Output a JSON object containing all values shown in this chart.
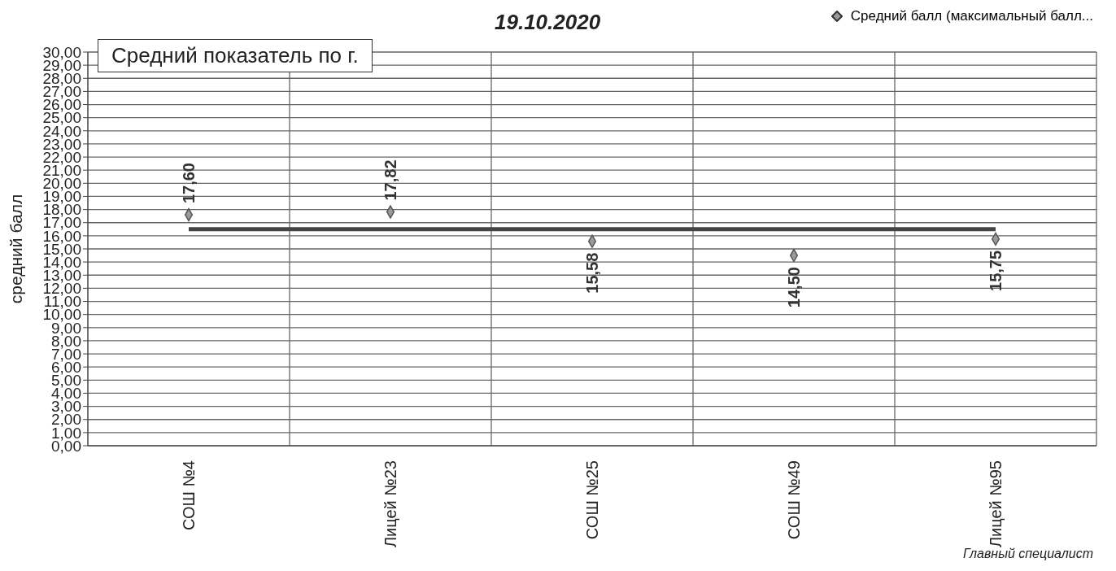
{
  "chart_data": {
    "type": "scatter",
    "title": "19.10.2020",
    "ylabel": "средний балл",
    "categories": [
      "СОШ №4",
      "Лицей №23",
      "СОШ №25",
      "СОШ №49",
      "Лицей №95"
    ],
    "series": [
      {
        "name": "Средний балл (максимальный балл...",
        "color": "#9a9a9a",
        "values": [
          17.6,
          17.82,
          15.58,
          14.5,
          15.75
        ]
      }
    ],
    "value_labels": [
      "17,60",
      "17,82",
      "15,58",
      "14,50",
      "15,75"
    ],
    "marker": "diamond",
    "grid": true,
    "legend": "top right",
    "ref_lines": [
      {
        "axis": "y",
        "value": 16.5,
        "label": "Средний показатель по г.",
        "color": "#444444"
      }
    ],
    "annotations": [
      "Главный специалист"
    ],
    "ylim": [
      0,
      30
    ],
    "yticks": [
      {
        "value": 0,
        "label": "0,00"
      },
      {
        "value": 1,
        "label": "1,00"
      },
      {
        "value": 2,
        "label": "2,00"
      },
      {
        "value": 3,
        "label": "3,00"
      },
      {
        "value": 4,
        "label": "4,00"
      },
      {
        "value": 5,
        "label": "5,00"
      },
      {
        "value": 6,
        "label": "6,00"
      },
      {
        "value": 7,
        "label": "7,00"
      },
      {
        "value": 8,
        "label": "8,00"
      },
      {
        "value": 9,
        "label": "9,00"
      },
      {
        "value": 10,
        "label": "10,00"
      },
      {
        "value": 11,
        "label": "11,00"
      },
      {
        "value": 12,
        "label": "12,00"
      },
      {
        "value": 13,
        "label": "13,00"
      },
      {
        "value": 14,
        "label": "14,00"
      },
      {
        "value": 15,
        "label": "15,00"
      },
      {
        "value": 16,
        "label": "16,00"
      },
      {
        "value": 17,
        "label": "17,00"
      },
      {
        "value": 18,
        "label": "18,00"
      },
      {
        "value": 19,
        "label": "19,00"
      },
      {
        "value": 20,
        "label": "20,00"
      },
      {
        "value": 21,
        "label": "21,00"
      },
      {
        "value": 22,
        "label": "22,00"
      },
      {
        "value": 23,
        "label": "23,00"
      },
      {
        "value": 24,
        "label": "24,00"
      },
      {
        "value": 25,
        "label": "25,00"
      },
      {
        "value": 26,
        "label": "26,00"
      },
      {
        "value": 27,
        "label": "27,00"
      },
      {
        "value": 28,
        "label": "28,00"
      },
      {
        "value": 29,
        "label": "29,00"
      },
      {
        "value": 30,
        "label": "30,00"
      }
    ]
  }
}
